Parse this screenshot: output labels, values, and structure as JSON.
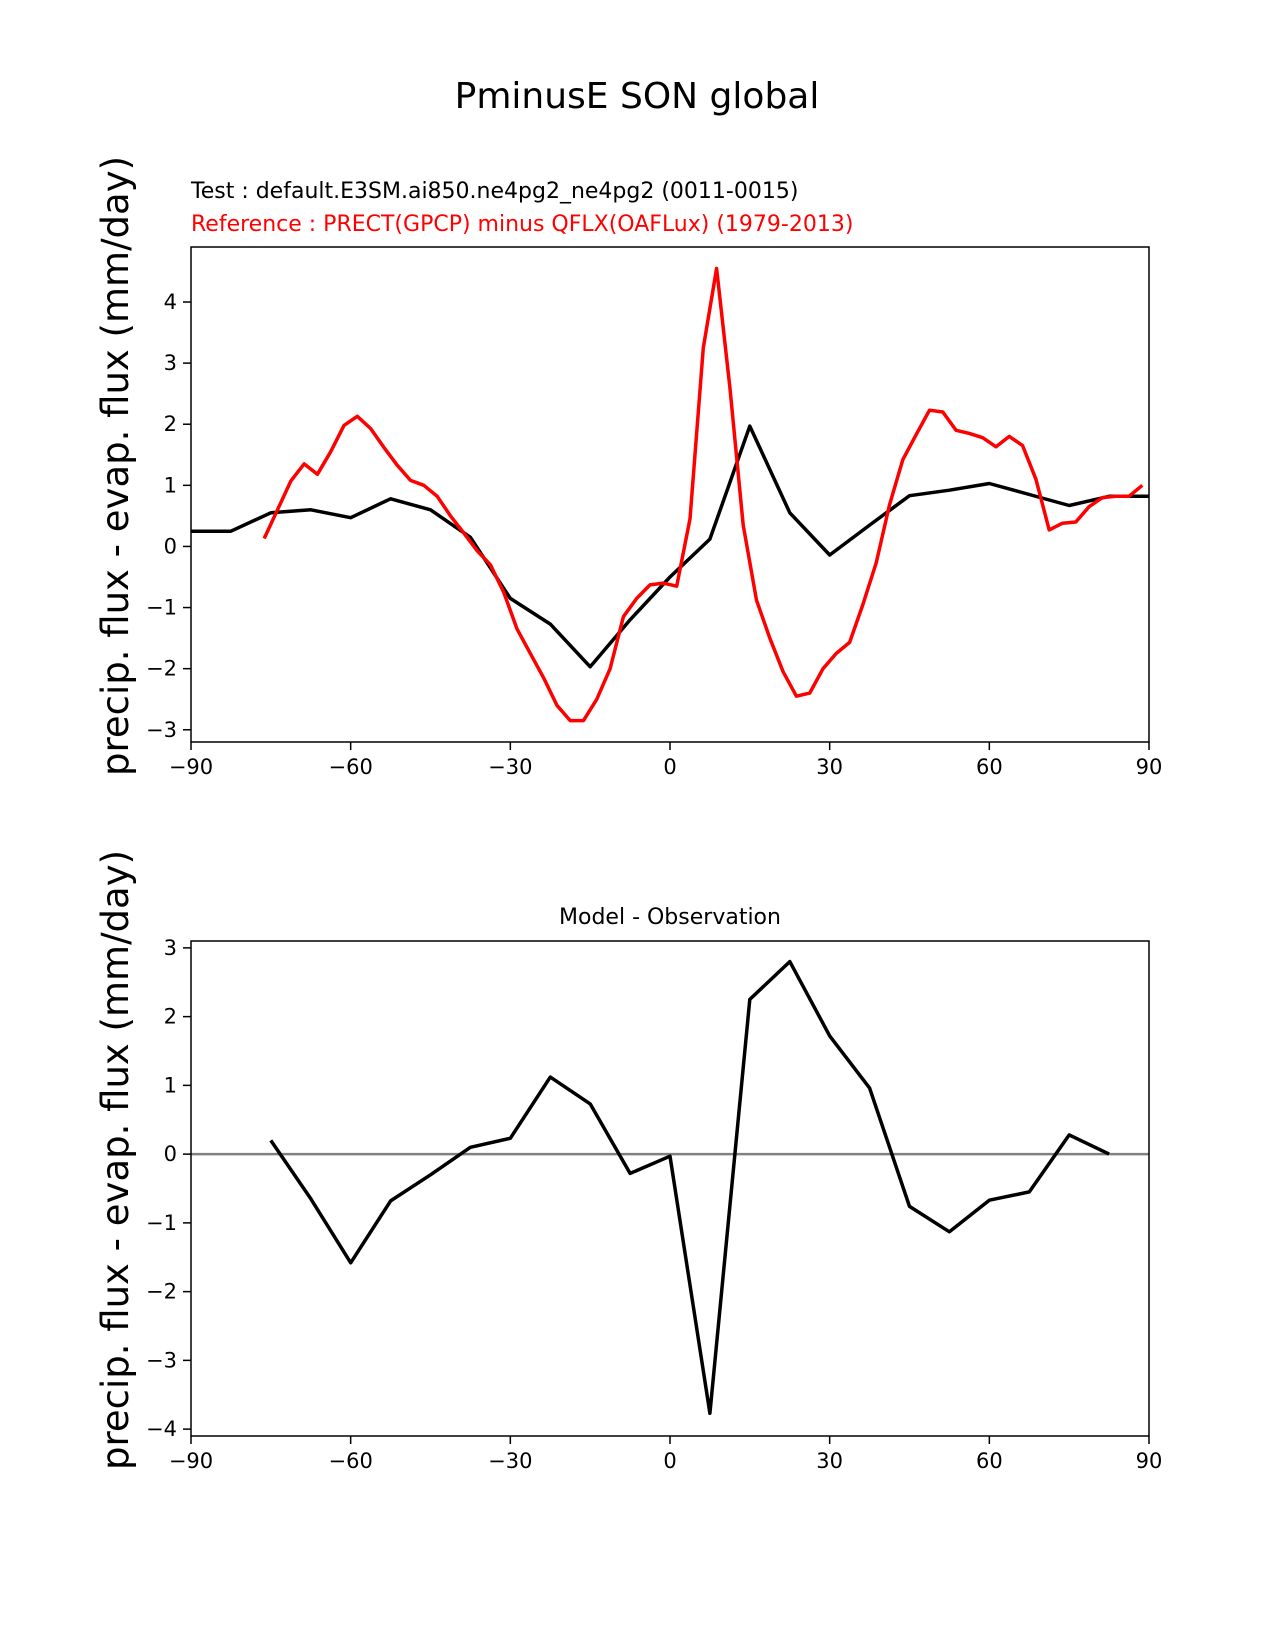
{
  "figure": {
    "title": "PminusE SON global"
  },
  "chart_data": [
    {
      "type": "line",
      "test_label": "Test : default.E3SM.ai850.ne4pg2_ne4pg2 (0011-0015)",
      "reference_label": "Reference : PRECT(GPCP) minus QFLX(OAFLux) (1979-2013)",
      "ylabel": "precip. flux - evap. flux (mm/day)",
      "xlabel": "",
      "xlim": [
        -90,
        90
      ],
      "ylim": [
        -3.2,
        4.9
      ],
      "xticks": [
        -90,
        -60,
        -30,
        0,
        30,
        60,
        90
      ],
      "yticks": [
        -3,
        -2,
        -1,
        0,
        1,
        2,
        3,
        4
      ],
      "series": [
        {
          "name": "Test",
          "color": "#000000",
          "x": [
            -90,
            -82.5,
            -75,
            -67.5,
            -60,
            -52.5,
            -45,
            -37.5,
            -30,
            -22.5,
            -15,
            -7.5,
            0,
            7.5,
            15,
            22.5,
            30,
            37.5,
            45,
            52.5,
            60,
            67.5,
            75,
            82.5,
            90
          ],
          "y": [
            0.25,
            0.25,
            0.55,
            0.6,
            0.47,
            0.78,
            0.6,
            0.15,
            -0.85,
            -1.27,
            -1.97,
            -1.2,
            -0.5,
            0.12,
            1.97,
            0.55,
            -0.14,
            0.35,
            0.83,
            0.92,
            1.03,
            0.85,
            0.67,
            0.82,
            0.82
          ]
        },
        {
          "name": "Reference",
          "color": "#ff0000",
          "x": [
            -76.25,
            -73.75,
            -71.25,
            -68.75,
            -66.25,
            -63.75,
            -61.25,
            -58.75,
            -56.25,
            -53.75,
            -51.25,
            -48.75,
            -46.25,
            -43.75,
            -41.25,
            -38.75,
            -36.25,
            -33.75,
            -31.25,
            -28.75,
            -26.25,
            -23.75,
            -21.25,
            -18.75,
            -16.25,
            -13.75,
            -11.25,
            -8.75,
            -6.25,
            -3.75,
            -1.25,
            1.25,
            3.75,
            6.25,
            8.75,
            11.25,
            13.75,
            16.25,
            18.75,
            21.25,
            23.75,
            26.25,
            28.75,
            31.25,
            33.75,
            36.25,
            38.75,
            41.25,
            43.75,
            46.25,
            48.75,
            51.25,
            53.75,
            56.25,
            58.75,
            61.25,
            63.75,
            66.25,
            68.75,
            71.25,
            73.75,
            76.25,
            78.75,
            81.25,
            83.75,
            86.25,
            88.75
          ],
          "y": [
            0.13,
            0.6,
            1.07,
            1.35,
            1.18,
            1.55,
            1.98,
            2.13,
            1.93,
            1.62,
            1.33,
            1.08,
            1.0,
            0.82,
            0.5,
            0.22,
            -0.07,
            -0.3,
            -0.75,
            -1.35,
            -1.75,
            -2.15,
            -2.6,
            -2.85,
            -2.85,
            -2.5,
            -2.0,
            -1.15,
            -0.85,
            -0.63,
            -0.6,
            -0.65,
            0.45,
            3.25,
            4.55,
            2.6,
            0.35,
            -0.88,
            -1.5,
            -2.05,
            -2.45,
            -2.4,
            -2.0,
            -1.75,
            -1.57,
            -0.95,
            -0.27,
            0.68,
            1.42,
            1.83,
            2.23,
            2.2,
            1.9,
            1.85,
            1.78,
            1.63,
            1.8,
            1.65,
            1.1,
            0.27,
            0.38,
            0.4,
            0.65,
            0.8,
            0.82,
            0.82,
            1.0
          ]
        }
      ]
    },
    {
      "type": "line",
      "title": "Model - Observation",
      "ylabel": "precip. flux - evap. flux (mm/day)",
      "xlabel": "",
      "xlim": [
        -90,
        90
      ],
      "ylim": [
        -4.1,
        3.1
      ],
      "xticks": [
        -90,
        -60,
        -30,
        0,
        30,
        60,
        90
      ],
      "yticks": [
        -4,
        -3,
        -2,
        -1,
        0,
        1,
        2,
        3
      ],
      "zero_line_color": "#808080",
      "series": [
        {
          "name": "Model - Observation",
          "color": "#000000",
          "x": [
            -75,
            -67.5,
            -60,
            -52.5,
            -45,
            -37.5,
            -30,
            -22.5,
            -15,
            -7.5,
            0,
            7.5,
            15,
            22.5,
            30,
            37.5,
            45,
            52.5,
            60,
            67.5,
            75,
            82.5
          ],
          "y": [
            0.2,
            -0.65,
            -1.58,
            -0.68,
            -0.3,
            0.1,
            0.23,
            1.12,
            0.73,
            -0.28,
            -0.03,
            -3.77,
            2.25,
            2.8,
            1.72,
            0.96,
            -0.76,
            -1.13,
            -0.67,
            -0.55,
            0.28,
            0.0
          ]
        }
      ]
    }
  ]
}
